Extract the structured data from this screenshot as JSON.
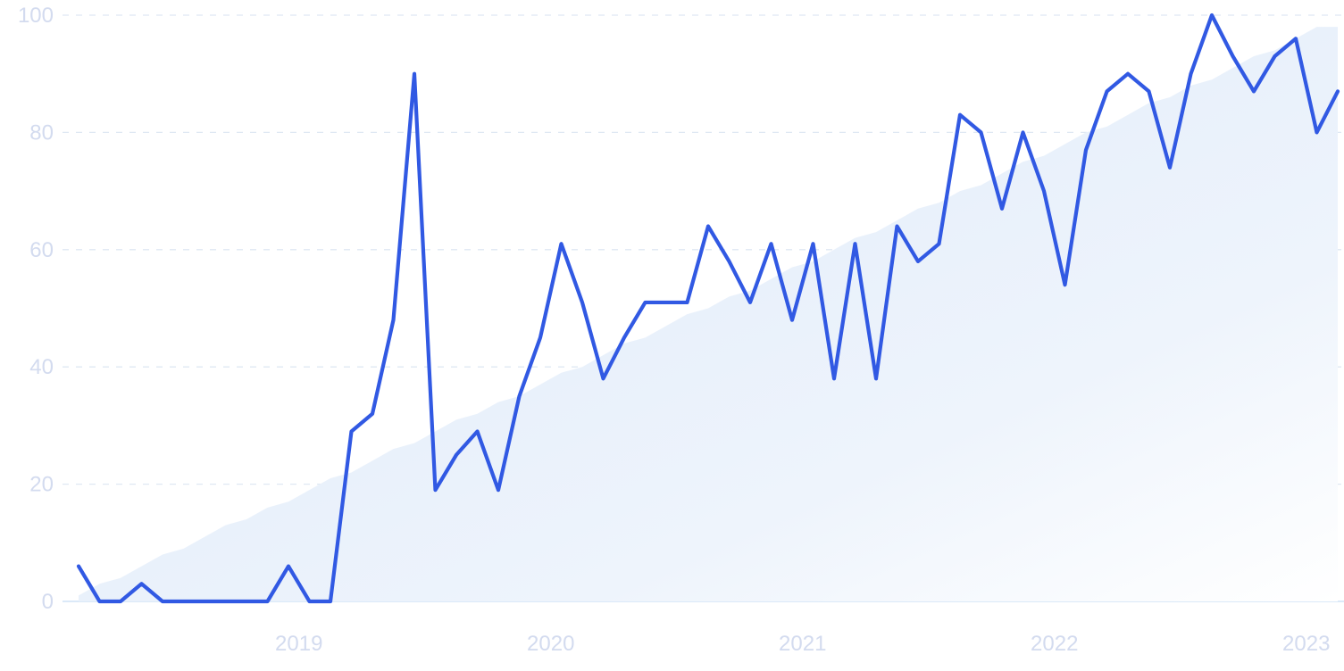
{
  "chart_data": {
    "type": "line",
    "x_start": "2018-08",
    "x_labels": [
      "2019",
      "2020",
      "2021",
      "2022",
      "2023"
    ],
    "y_ticks": [
      0,
      20,
      40,
      60,
      80,
      100
    ],
    "ylim": [
      0,
      100
    ],
    "grid": true,
    "colors": {
      "line": "#3159e3",
      "trend_fill_top": "#dce9f8",
      "trend_fill_bottom": "#ffffff",
      "grid": "#dfe8f3",
      "tick_text": "#d3dbef"
    },
    "series": [
      {
        "values": [
          6,
          0,
          0,
          3,
          0,
          0,
          0,
          0,
          0,
          0,
          6,
          0,
          0,
          29,
          32,
          48,
          90,
          19,
          25,
          29,
          19,
          35,
          45,
          61,
          51,
          38,
          45,
          51,
          51,
          51,
          64,
          58,
          51,
          61,
          48,
          61,
          38,
          61,
          38,
          64,
          58,
          61,
          83,
          80,
          67,
          80,
          70,
          54,
          77,
          87,
          90,
          87,
          74,
          90,
          100,
          93,
          87,
          93,
          96,
          80,
          87
        ]
      }
    ],
    "trend_area": {
      "values": [
        1,
        3,
        4,
        6,
        8,
        9,
        11,
        13,
        14,
        16,
        17,
        19,
        21,
        22,
        24,
        26,
        27,
        29,
        31,
        32,
        34,
        35,
        37,
        39,
        40,
        42,
        44,
        45,
        47,
        49,
        50,
        52,
        53,
        55,
        57,
        58,
        60,
        62,
        63,
        65,
        67,
        68,
        70,
        71,
        73,
        75,
        76,
        78,
        80,
        81,
        83,
        85,
        86,
        88,
        89,
        91,
        93,
        94,
        96,
        98,
        98
      ]
    }
  }
}
